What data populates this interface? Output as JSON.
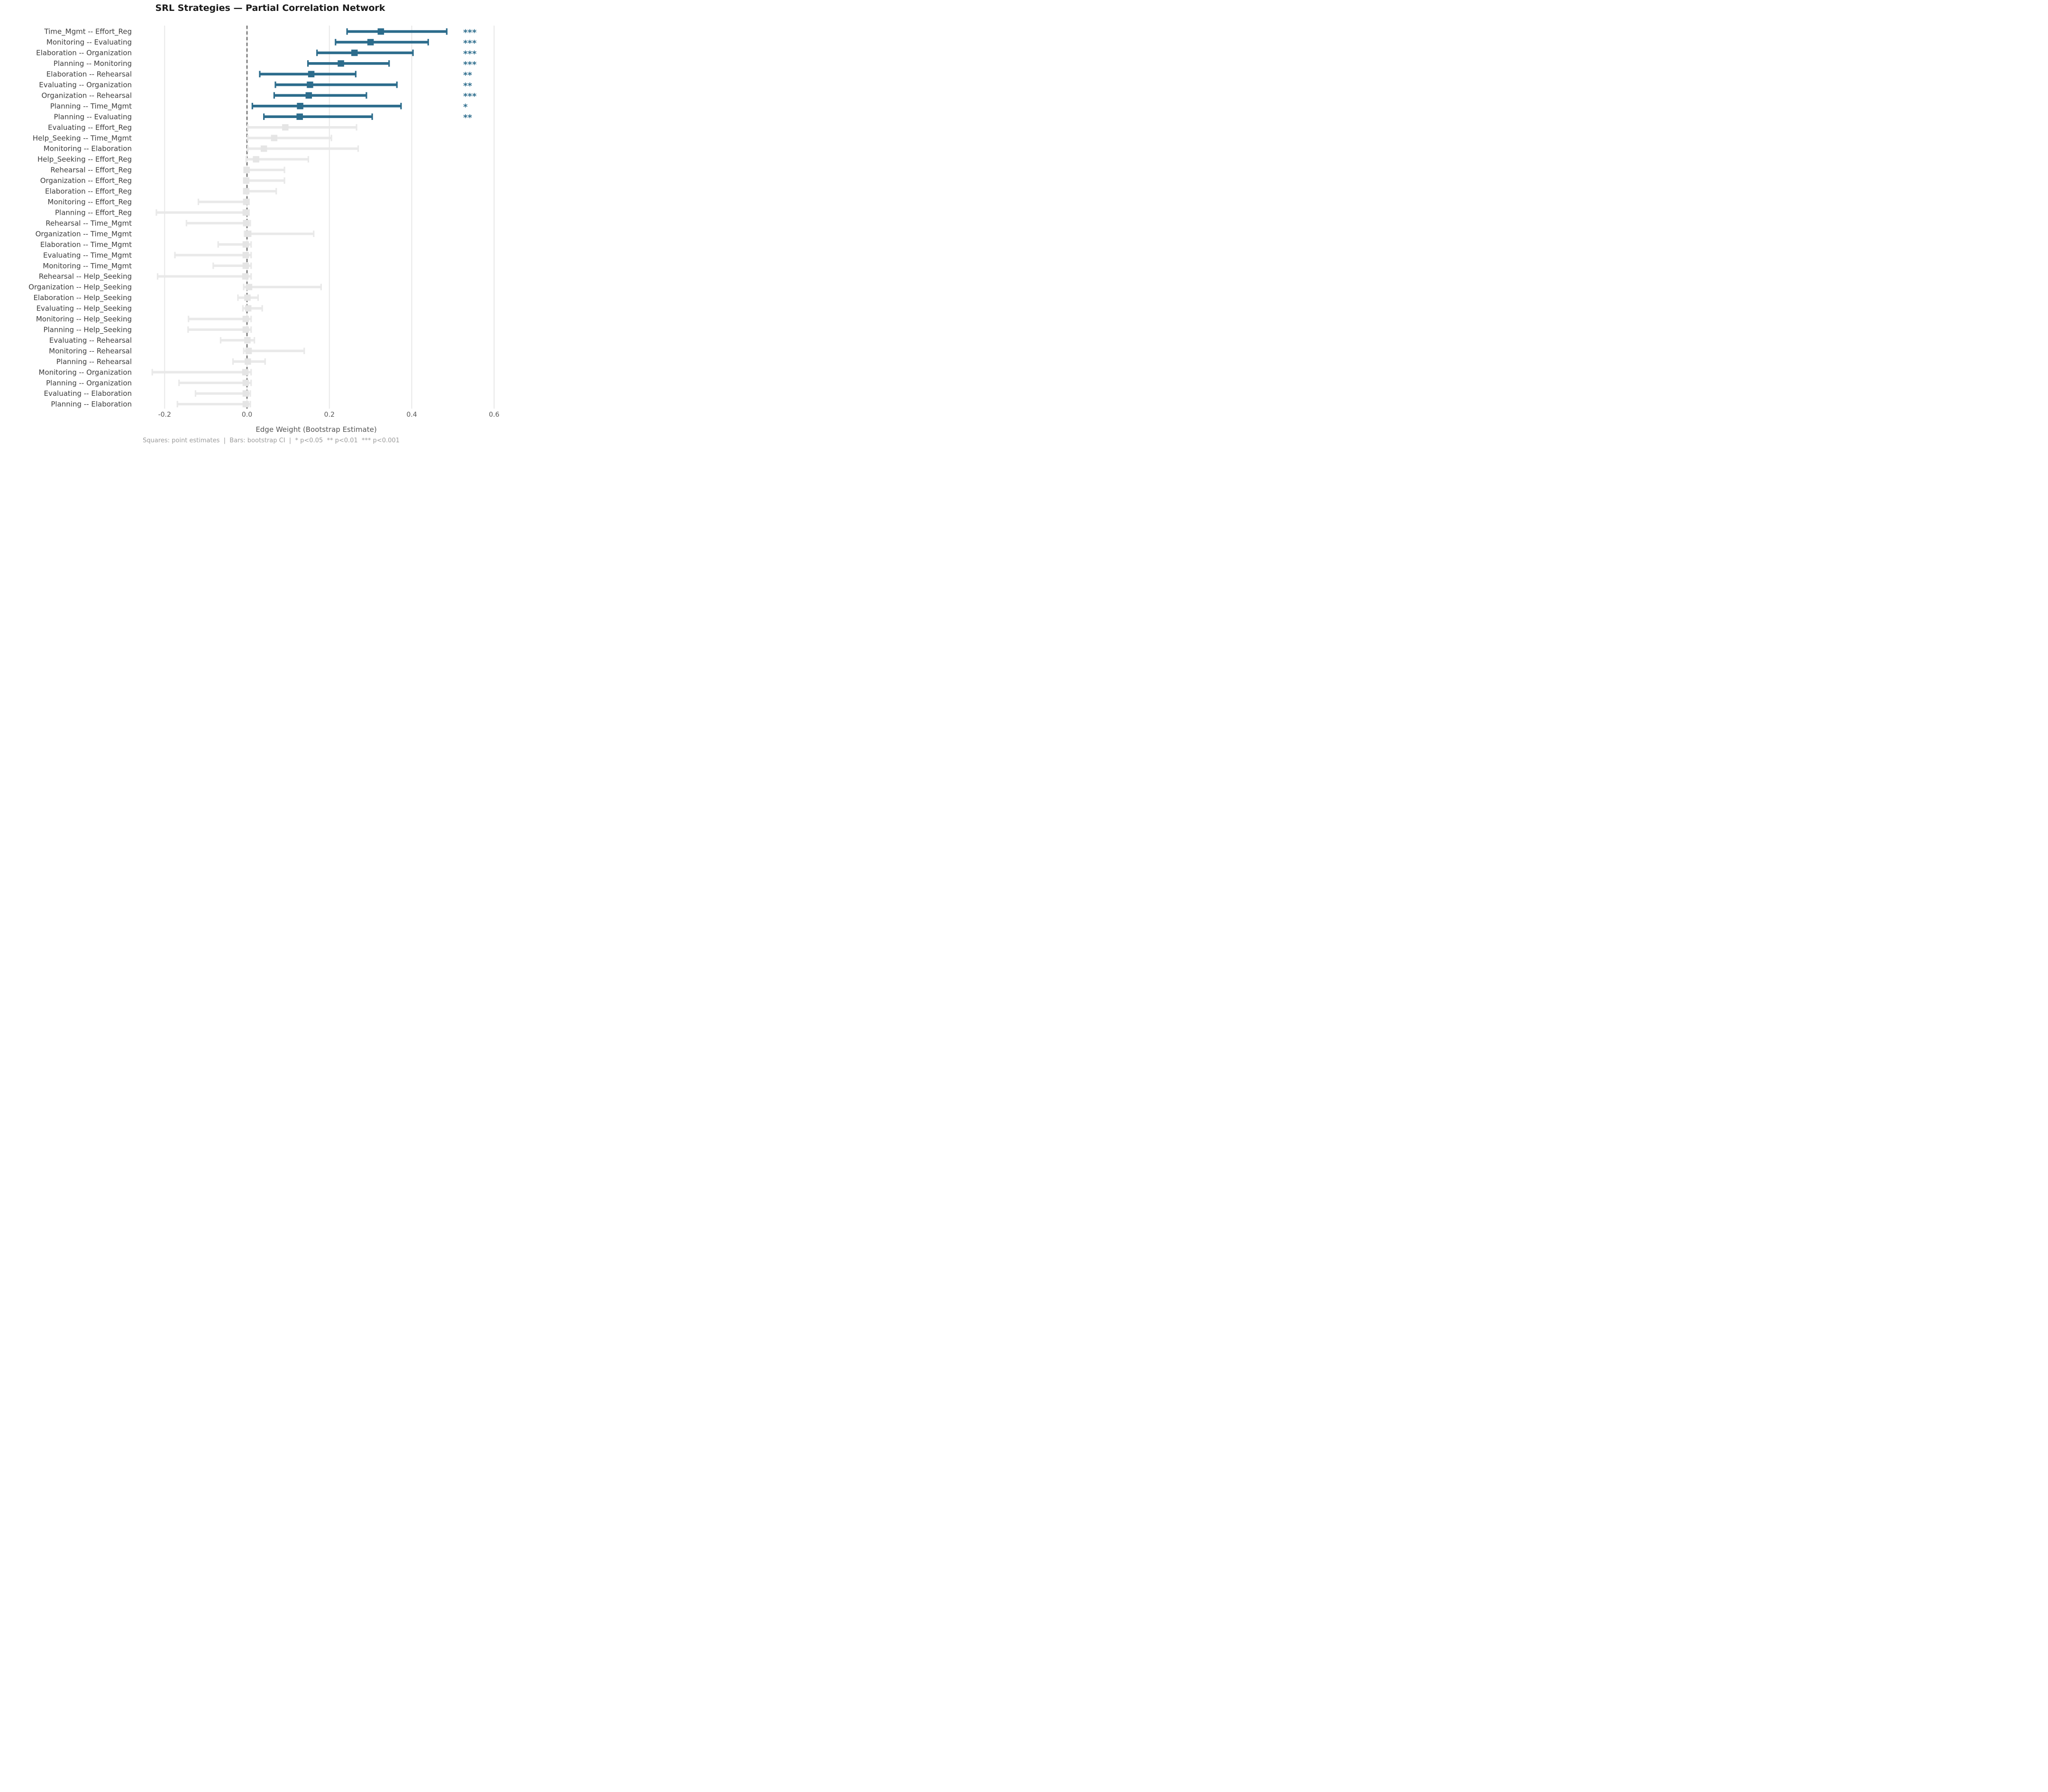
{
  "chart_data": {
    "type": "forest",
    "title": "SRL Strategies — Partial Correlation Network",
    "xlabel": "Edge Weight (Bootstrap Estimate)",
    "footnote": "Squares: point estimates  |  Bars: bootstrap CI  |  * p<0.05  ** p<0.01  *** p<0.001",
    "legend_note": "Squares: point estimates; Bars: bootstrap CI",
    "xlim": [
      -0.25,
      0.64
    ],
    "grid": true,
    "zero_line": 0.0,
    "x_ticks": [
      {
        "value": -0.2,
        "label": "-0.2"
      },
      {
        "value": 0.0,
        "label": "0.0"
      },
      {
        "value": 0.2,
        "label": "0.2"
      },
      {
        "value": 0.4,
        "label": "0.4"
      },
      {
        "value": 0.6,
        "label": "0.6"
      }
    ],
    "colors": {
      "significant": "#2c6c8c",
      "nonsignificant_bar": "#e9e9e9",
      "nonsignificant_square": "#e5e5e5",
      "zero_line": "#7f7f7f",
      "gridline": "#e8e8e8",
      "row_label": "#3d3d3d",
      "tick_label": "#555555",
      "title": "#1a1a1a",
      "footnote": "#9b9b9b"
    },
    "rows": [
      {
        "label": "Time_Mgmt -- Effort_Reg",
        "estimate": 0.325,
        "ci_low": 0.243,
        "ci_high": 0.485,
        "stars": "***"
      },
      {
        "label": "Monitoring -- Evaluating",
        "estimate": 0.3,
        "ci_low": 0.215,
        "ci_high": 0.44,
        "stars": "***"
      },
      {
        "label": "Elaboration -- Organization",
        "estimate": 0.261,
        "ci_low": 0.17,
        "ci_high": 0.403,
        "stars": "***"
      },
      {
        "label": "Planning -- Monitoring",
        "estimate": 0.228,
        "ci_low": 0.148,
        "ci_high": 0.345,
        "stars": "***"
      },
      {
        "label": "Elaboration -- Rehearsal",
        "estimate": 0.156,
        "ci_low": 0.031,
        "ci_high": 0.264,
        "stars": "**"
      },
      {
        "label": "Evaluating -- Organization",
        "estimate": 0.153,
        "ci_low": 0.069,
        "ci_high": 0.364,
        "stars": "**"
      },
      {
        "label": "Organization -- Rehearsal",
        "estimate": 0.15,
        "ci_low": 0.066,
        "ci_high": 0.29,
        "stars": "***"
      },
      {
        "label": "Planning -- Time_Mgmt",
        "estimate": 0.129,
        "ci_low": 0.013,
        "ci_high": 0.374,
        "stars": "*"
      },
      {
        "label": "Planning -- Evaluating",
        "estimate": 0.128,
        "ci_low": 0.041,
        "ci_high": 0.304,
        "stars": "**"
      },
      {
        "label": "Evaluating -- Effort_Reg",
        "estimate": 0.093,
        "ci_low": 0.002,
        "ci_high": 0.266,
        "stars": ""
      },
      {
        "label": "Help_Seeking -- Time_Mgmt",
        "estimate": 0.066,
        "ci_low": 0.002,
        "ci_high": 0.205,
        "stars": ""
      },
      {
        "label": "Monitoring -- Elaboration",
        "estimate": 0.041,
        "ci_low": 0.002,
        "ci_high": 0.27,
        "stars": ""
      },
      {
        "label": "Help_Seeking -- Effort_Reg",
        "estimate": 0.022,
        "ci_low": -0.002,
        "ci_high": 0.149,
        "stars": ""
      },
      {
        "label": "Rehearsal -- Effort_Reg",
        "estimate": -0.001,
        "ci_low": -0.005,
        "ci_high": 0.091,
        "stars": ""
      },
      {
        "label": "Organization -- Effort_Reg",
        "estimate": -0.002,
        "ci_low": -0.005,
        "ci_high": 0.091,
        "stars": ""
      },
      {
        "label": "Elaboration -- Effort_Reg",
        "estimate": -0.002,
        "ci_low": -0.005,
        "ci_high": 0.071,
        "stars": ""
      },
      {
        "label": "Monitoring -- Effort_Reg",
        "estimate": -0.002,
        "ci_low": -0.118,
        "ci_high": 0.005,
        "stars": ""
      },
      {
        "label": "Planning -- Effort_Reg",
        "estimate": -0.003,
        "ci_low": -0.22,
        "ci_high": 0.005,
        "stars": ""
      },
      {
        "label": "Rehearsal -- Time_Mgmt",
        "estimate": -0.002,
        "ci_low": -0.147,
        "ci_high": 0.008,
        "stars": ""
      },
      {
        "label": "Organization -- Time_Mgmt",
        "estimate": 0.003,
        "ci_low": -0.006,
        "ci_high": 0.162,
        "stars": ""
      },
      {
        "label": "Elaboration -- Time_Mgmt",
        "estimate": -0.003,
        "ci_low": -0.07,
        "ci_high": 0.01,
        "stars": ""
      },
      {
        "label": "Evaluating -- Time_Mgmt",
        "estimate": -0.003,
        "ci_low": -0.175,
        "ci_high": 0.01,
        "stars": ""
      },
      {
        "label": "Monitoring -- Time_Mgmt",
        "estimate": -0.003,
        "ci_low": -0.082,
        "ci_high": 0.01,
        "stars": ""
      },
      {
        "label": "Rehearsal -- Help_Seeking",
        "estimate": -0.004,
        "ci_low": -0.217,
        "ci_high": 0.01,
        "stars": ""
      },
      {
        "label": "Organization -- Help_Seeking",
        "estimate": 0.005,
        "ci_low": -0.008,
        "ci_high": 0.18,
        "stars": ""
      },
      {
        "label": "Elaboration -- Help_Seeking",
        "estimate": 0.001,
        "ci_low": -0.022,
        "ci_high": 0.027,
        "stars": ""
      },
      {
        "label": "Evaluating -- Help_Seeking",
        "estimate": 0.003,
        "ci_low": -0.01,
        "ci_high": 0.037,
        "stars": ""
      },
      {
        "label": "Monitoring -- Help_Seeking",
        "estimate": -0.003,
        "ci_low": -0.142,
        "ci_high": 0.01,
        "stars": ""
      },
      {
        "label": "Planning -- Help_Seeking",
        "estimate": -0.003,
        "ci_low": -0.143,
        "ci_high": 0.01,
        "stars": ""
      },
      {
        "label": "Evaluating -- Rehearsal",
        "estimate": 0.001,
        "ci_low": -0.064,
        "ci_high": 0.018,
        "stars": ""
      },
      {
        "label": "Monitoring -- Rehearsal",
        "estimate": 0.004,
        "ci_low": -0.008,
        "ci_high": 0.139,
        "stars": ""
      },
      {
        "label": "Planning -- Rehearsal",
        "estimate": 0.002,
        "ci_low": -0.034,
        "ci_high": 0.044,
        "stars": ""
      },
      {
        "label": "Monitoring -- Organization",
        "estimate": -0.004,
        "ci_low": -0.23,
        "ci_high": 0.01,
        "stars": ""
      },
      {
        "label": "Planning -- Organization",
        "estimate": -0.003,
        "ci_low": -0.165,
        "ci_high": 0.01,
        "stars": ""
      },
      {
        "label": "Evaluating -- Elaboration",
        "estimate": -0.003,
        "ci_low": -0.125,
        "ci_high": 0.008,
        "stars": ""
      },
      {
        "label": "Planning -- Elaboration",
        "estimate": -0.003,
        "ci_low": -0.169,
        "ci_high": 0.008,
        "stars": ""
      }
    ]
  }
}
